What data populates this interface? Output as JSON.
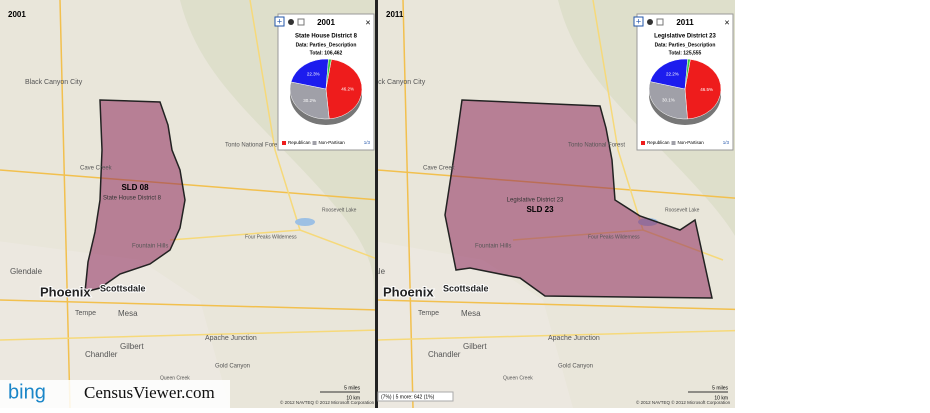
{
  "maps": [
    {
      "year": "2001",
      "district_code": "SLD 08",
      "district_name": "State House District 8",
      "places": [
        "Black Canyon City",
        "Cave Creek",
        "Phoenix",
        "Tempe",
        "Mesa",
        "Scottsdale",
        "Glendale",
        "Chandler",
        "Gilbert",
        "Apache Junction",
        "Gold Canyon",
        "Fountain Hills",
        "Tonto National Forest",
        "Four Peaks Wilderness",
        "Queen Creek",
        "Roosevelt Lake"
      ],
      "popup": {
        "title": "2001",
        "heading": "State House District 8",
        "data": "Data: Parties_Description",
        "total": "Total: 106,462",
        "slices": {
          "values": [
            46.2,
            30.2,
            22.3,
            1.3
          ],
          "value_labels": [
            "46.2%",
            "30.2%",
            "22.3%",
            null
          ],
          "colors": [
            "#ee1c1c",
            "#a0a0a8",
            "#1c1cee",
            "#3cc83c"
          ]
        },
        "legend": [
          "Republican",
          "Non-Partisan"
        ],
        "pager": "1/3"
      }
    },
    {
      "year": "2011",
      "district_code": "SLD 23",
      "district_name": "Legislative District 23",
      "places": [
        "Black Canyon City",
        "Cave Creek",
        "Phoenix",
        "Tempe",
        "Mesa",
        "Scottsdale",
        "Glendale",
        "Chandler",
        "Gilbert",
        "Apache Junction",
        "Gold Canyon",
        "Fountain Hills",
        "Tonto National Forest",
        "Four Peaks Wilderness",
        "Queen Creek",
        "Roosevelt Lake"
      ],
      "popup": {
        "title": "2011",
        "heading": "Legislative District 23",
        "data": "Data: Parties_Description",
        "total": "Total: 125,555",
        "slices": {
          "values": [
            46.5,
            30.1,
            22.2,
            1.2
          ],
          "value_labels": [
            "46.5%",
            "30.1%",
            "22.2%",
            null
          ],
          "colors": [
            "#ee1c1c",
            "#a0a0a8",
            "#1c1cee",
            "#3cc83c"
          ]
        },
        "legend": [
          "Republican",
          "Non-Partisan"
        ],
        "pager": "1/3"
      },
      "status": "(7%) | 5 more: 642 (1%)"
    }
  ],
  "scale": {
    "miles": "5 miles",
    "km": "10 km"
  },
  "copyright": "© 2012 NAVTEQ © 2012 Microsoft Corporation",
  "logos": {
    "bing": "bing",
    "census": "CensusViewer.com"
  }
}
